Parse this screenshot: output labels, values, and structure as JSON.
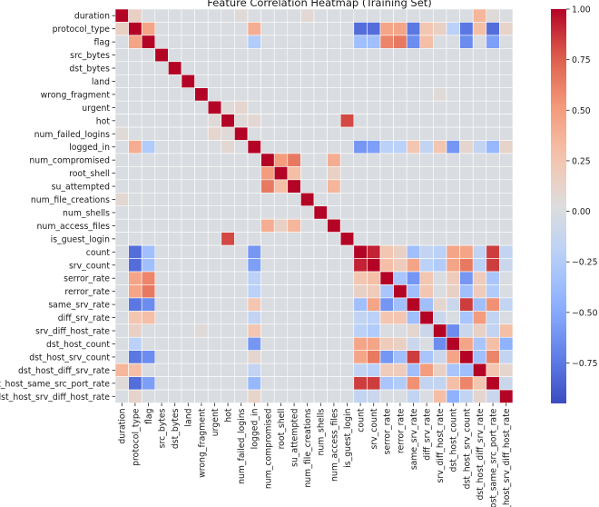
{
  "chart_data": {
    "type": "heatmap",
    "title": "Feature Correlation Heatmap (Training Set)",
    "labels": [
      "duration",
      "protocol_type",
      "flag",
      "src_bytes",
      "dst_bytes",
      "land",
      "wrong_fragment",
      "urgent",
      "hot",
      "num_failed_logins",
      "logged_in",
      "num_compromised",
      "root_shell",
      "su_attempted",
      "num_file_creations",
      "num_shells",
      "num_access_files",
      "is_guest_login",
      "count",
      "srv_count",
      "serror_rate",
      "rerror_rate",
      "same_srv_rate",
      "diff_srv_rate",
      "srv_diff_host_rate",
      "dst_host_count",
      "dst_host_srv_count",
      "dst_host_diff_srv_rate",
      "dst_host_same_src_port_rate",
      "dst_host_srv_diff_host_rate"
    ],
    "colorscale": "coolwarm",
    "vmin": -0.95,
    "vmax": 1.0,
    "colorbar_ticks": [
      1.0,
      0.75,
      0.5,
      0.25,
      0.0,
      -0.25,
      -0.5,
      -0.75
    ],
    "colorbar_tick_labels": [
      "1.00",
      "0.75",
      "0.50",
      "0.25",
      "0.00",
      "−0.25",
      "−0.50",
      "−0.75"
    ],
    "baseline": 0.0,
    "correlations": [
      [
        0,
        1,
        0.15
      ],
      [
        0,
        2,
        0.0
      ],
      [
        0,
        9,
        0.05
      ],
      [
        0,
        14,
        0.08
      ],
      [
        0,
        27,
        0.35
      ],
      [
        0,
        28,
        0.05
      ],
      [
        1,
        2,
        0.45
      ],
      [
        1,
        10,
        0.4
      ],
      [
        1,
        18,
        -0.8
      ],
      [
        1,
        19,
        -0.8
      ],
      [
        1,
        20,
        0.45
      ],
      [
        1,
        21,
        0.45
      ],
      [
        1,
        22,
        -0.75
      ],
      [
        1,
        23,
        0.25
      ],
      [
        1,
        24,
        0.15
      ],
      [
        1,
        25,
        -0.2
      ],
      [
        1,
        26,
        -0.75
      ],
      [
        1,
        27,
        0.3
      ],
      [
        1,
        28,
        -0.8
      ],
      [
        1,
        29,
        0.12
      ],
      [
        2,
        10,
        -0.25
      ],
      [
        2,
        18,
        -0.35
      ],
      [
        2,
        19,
        -0.35
      ],
      [
        2,
        20,
        0.6
      ],
      [
        2,
        21,
        0.65
      ],
      [
        2,
        22,
        -0.65
      ],
      [
        2,
        23,
        0.3
      ],
      [
        2,
        26,
        -0.65
      ],
      [
        2,
        28,
        -0.55
      ],
      [
        6,
        24,
        0.05
      ],
      [
        7,
        8,
        0.05
      ],
      [
        7,
        9,
        0.1
      ],
      [
        8,
        9,
        0.05
      ],
      [
        8,
        10,
        0.08
      ],
      [
        8,
        17,
        0.82
      ],
      [
        10,
        18,
        -0.6
      ],
      [
        10,
        19,
        -0.55
      ],
      [
        10,
        20,
        -0.2
      ],
      [
        10,
        21,
        -0.2
      ],
      [
        10,
        22,
        0.25
      ],
      [
        10,
        23,
        -0.15
      ],
      [
        10,
        24,
        0.25
      ],
      [
        10,
        25,
        -0.6
      ],
      [
        10,
        26,
        0.1
      ],
      [
        10,
        27,
        -0.15
      ],
      [
        10,
        28,
        -0.4
      ],
      [
        10,
        29,
        0.12
      ],
      [
        11,
        12,
        0.5
      ],
      [
        11,
        13,
        0.65
      ],
      [
        11,
        16,
        0.4
      ],
      [
        12,
        13,
        0.3
      ],
      [
        12,
        16,
        0.15
      ],
      [
        13,
        16,
        0.35
      ],
      [
        18,
        19,
        0.92
      ],
      [
        18,
        20,
        0.25
      ],
      [
        18,
        21,
        0.15
      ],
      [
        18,
        22,
        -0.35
      ],
      [
        18,
        23,
        -0.15
      ],
      [
        18,
        24,
        -0.2
      ],
      [
        18,
        25,
        0.45
      ],
      [
        18,
        26,
        0.45
      ],
      [
        18,
        27,
        -0.15
      ],
      [
        18,
        28,
        0.85
      ],
      [
        18,
        29,
        -0.15
      ],
      [
        19,
        20,
        0.3
      ],
      [
        19,
        21,
        0.2
      ],
      [
        19,
        22,
        0.45
      ],
      [
        19,
        23,
        -0.2
      ],
      [
        19,
        24,
        -0.25
      ],
      [
        19,
        25,
        0.45
      ],
      [
        19,
        26,
        0.65
      ],
      [
        19,
        27,
        -0.2
      ],
      [
        19,
        28,
        0.85
      ],
      [
        19,
        29,
        -0.1
      ],
      [
        20,
        21,
        -0.3
      ],
      [
        20,
        22,
        -0.6
      ],
      [
        20,
        23,
        0.25
      ],
      [
        20,
        25,
        0.2
      ],
      [
        20,
        26,
        -0.6
      ],
      [
        20,
        27,
        0.2
      ],
      [
        20,
        28,
        -0.3
      ],
      [
        21,
        22,
        -0.35
      ],
      [
        21,
        23,
        0.25
      ],
      [
        21,
        25,
        0.15
      ],
      [
        21,
        26,
        -0.35
      ],
      [
        21,
        27,
        0.2
      ],
      [
        21,
        28,
        -0.25
      ],
      [
        22,
        23,
        -0.35
      ],
      [
        22,
        24,
        0.1
      ],
      [
        22,
        25,
        -0.1
      ],
      [
        22,
        26,
        0.85
      ],
      [
        22,
        27,
        -0.35
      ],
      [
        22,
        28,
        0.55
      ],
      [
        22,
        29,
        -0.15
      ],
      [
        23,
        24,
        -0.1
      ],
      [
        23,
        26,
        -0.3
      ],
      [
        23,
        27,
        0.5
      ],
      [
        23,
        28,
        -0.15
      ],
      [
        24,
        25,
        -0.65
      ],
      [
        24,
        26,
        -0.1
      ],
      [
        24,
        27,
        0.15
      ],
      [
        24,
        28,
        -0.15
      ],
      [
        24,
        29,
        0.3
      ],
      [
        25,
        26,
        0.45
      ],
      [
        25,
        27,
        -0.3
      ],
      [
        25,
        28,
        0.3
      ],
      [
        25,
        29,
        -0.45
      ],
      [
        26,
        27,
        -0.35
      ],
      [
        26,
        28,
        0.6
      ],
      [
        26,
        29,
        -0.15
      ],
      [
        27,
        28,
        0.25
      ],
      [
        27,
        29,
        0.1
      ],
      [
        28,
        29,
        -0.1
      ]
    ]
  }
}
